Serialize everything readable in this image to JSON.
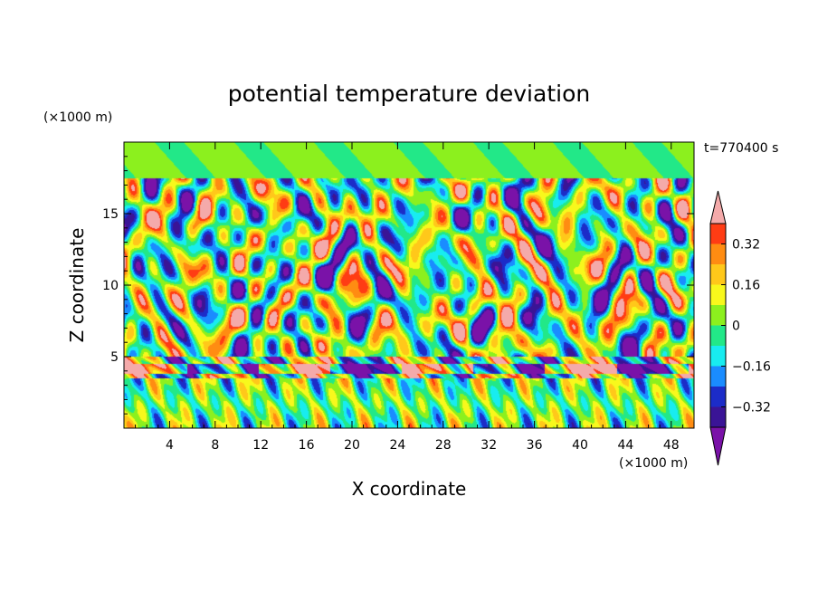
{
  "chart_data": {
    "type": "heatmap",
    "title": "potential temperature deviation",
    "xlabel": "X coordinate",
    "ylabel": "Z coordinate",
    "x_unit_label": "(×1000 m)",
    "y_unit_label": "(×1000 m)",
    "time_label": "t=770400 s",
    "xlim": [
      0,
      50
    ],
    "ylim": [
      0,
      20
    ],
    "x_ticks": [
      4,
      8,
      12,
      16,
      20,
      24,
      28,
      32,
      36,
      40,
      44,
      48
    ],
    "y_ticks": [
      5,
      10,
      15
    ],
    "x_tick_labels": [
      "4",
      "8",
      "12",
      "16",
      "20",
      "24",
      "28",
      "32",
      "36",
      "40",
      "44",
      "48"
    ],
    "y_tick_labels": [
      "5",
      "10",
      "15"
    ],
    "colorbar": {
      "levels": [
        -0.4,
        -0.32,
        -0.24,
        -0.16,
        -0.08,
        0,
        0.08,
        0.16,
        0.24,
        0.32,
        0.4
      ],
      "labels": [
        "0.32",
        "0.16",
        "0",
        "−0.16",
        "−0.32"
      ],
      "label_values": [
        0.32,
        0.16,
        0,
        -0.16,
        -0.32
      ],
      "colors": [
        "#7a12a8",
        "#3a1496",
        "#1c2cc8",
        "#1a8cff",
        "#18ecf0",
        "#22e888",
        "#8cf01e",
        "#f8f81c",
        "#ffc81a",
        "#ff8c12",
        "#ff3c14",
        "#f4aaaa"
      ],
      "extend": "both"
    }
  }
}
